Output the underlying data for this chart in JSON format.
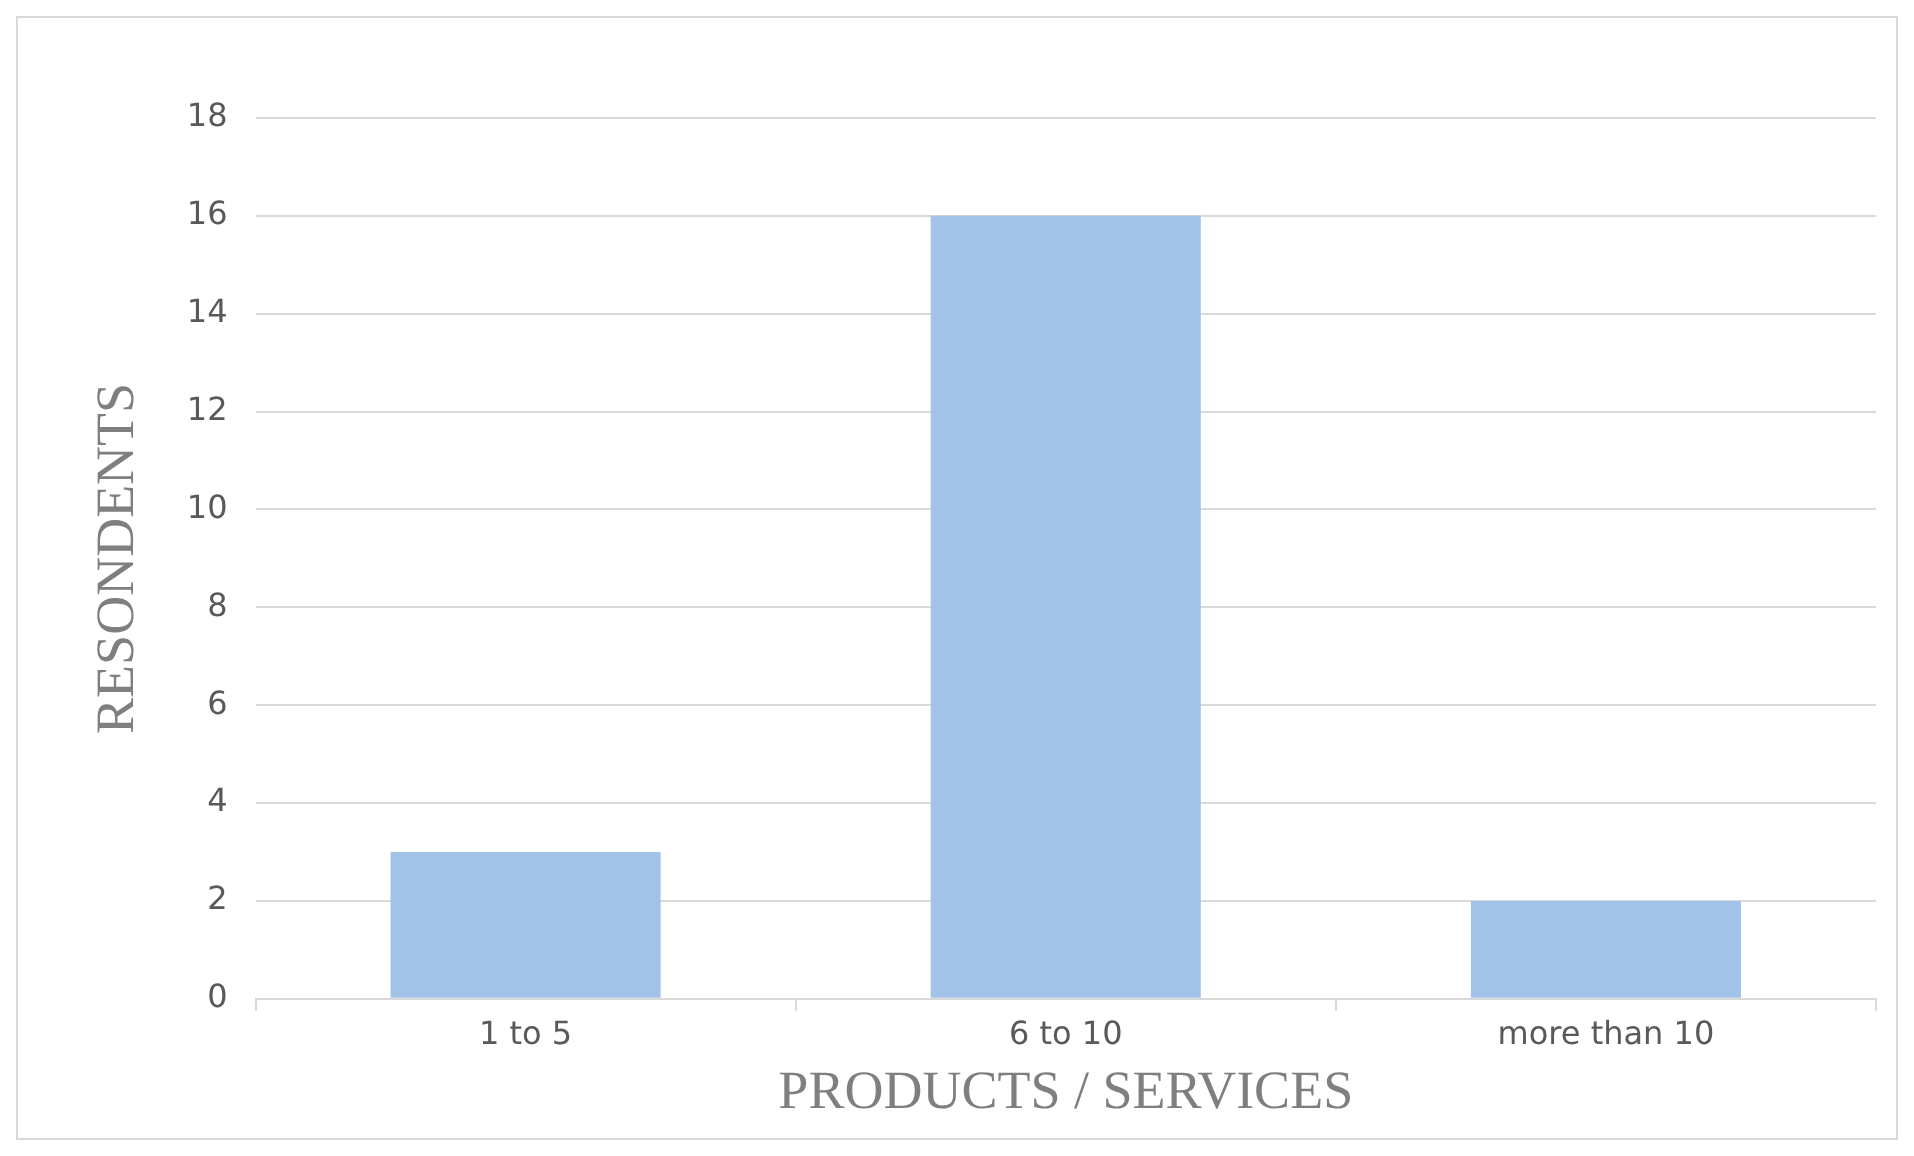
{
  "chart_data": {
    "type": "bar",
    "xlabel": "PRODUCTS / SERVICES",
    "ylabel": "RESONDENTS",
    "categories": [
      "1 to 5",
      "6 to 10",
      "more than 10"
    ],
    "values": [
      3,
      16,
      2
    ],
    "color": "#a3c2e8",
    "ylim": [
      0,
      18
    ],
    "yticks": [
      0,
      2,
      4,
      6,
      8,
      10,
      12,
      14,
      16,
      18
    ],
    "grid": "y",
    "legend": false
  }
}
